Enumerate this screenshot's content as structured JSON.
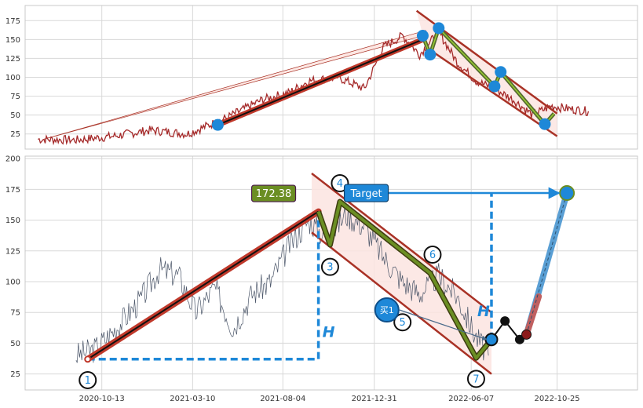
{
  "chart_data": [
    {
      "type": "line",
      "panel": "top",
      "ylim": [
        5,
        195
      ],
      "xlim": [
        "2020-06-10",
        "2023-03-05"
      ],
      "y_ticks": [
        25,
        50,
        75,
        100,
        125,
        150,
        175
      ],
      "grid": true,
      "price_series": {
        "color": "#a52a2a",
        "x": [
          "2020-07-01",
          "2020-09-01",
          "2020-11-01",
          "2021-01-01",
          "2021-03-01",
          "2021-05-01",
          "2021-07-01",
          "2021-08-15",
          "2021-09-15",
          "2021-11-01",
          "2021-12-15",
          "2022-01-15",
          "2022-02-15",
          "2022-03-15",
          "2022-04-15",
          "2022-05-15",
          "2022-06-15",
          "2022-07-15",
          "2022-08-15",
          "2022-09-15",
          "2022-10-15",
          "2022-11-15",
          "2022-12-15"
        ],
        "y": [
          18,
          17,
          22,
          30,
          25,
          45,
          70,
          80,
          95,
          100,
          85,
          140,
          155,
          130,
          160,
          120,
          95,
          85,
          70,
          50,
          62,
          58,
          55
        ]
      },
      "trend_line": {
        "x": [
          "2021-04-20",
          "2022-03-20"
        ],
        "y": [
          37,
          150
        ]
      },
      "wave_markers": {
        "x": [
          "2021-04-20",
          "2022-03-20",
          "2022-04-01",
          "2022-04-15",
          "2022-07-15",
          "2022-07-25",
          "2022-10-05"
        ],
        "y": [
          37,
          155,
          130,
          165,
          88,
          107,
          38
        ]
      },
      "zigzag": {
        "x": [
          "2022-03-20",
          "2022-04-01",
          "2022-04-15",
          "2022-07-15",
          "2022-07-25",
          "2022-10-05",
          "2022-10-20"
        ],
        "y": [
          155,
          130,
          165,
          88,
          107,
          38,
          52
        ]
      },
      "channel_upper": {
        "x": [
          "2022-03-10",
          "2022-10-25"
        ],
        "y": [
          188,
          52
        ]
      },
      "channel_lower": {
        "x": [
          "2022-03-25",
          "2022-10-25"
        ],
        "y": [
          140,
          22
        ]
      }
    },
    {
      "type": "line",
      "panel": "bottom",
      "ylim": [
        12,
        202
      ],
      "xlim": [
        "2020-06-10",
        "2023-03-05"
      ],
      "x_ticks": [
        "2020-10-13",
        "2021-03-10",
        "2021-08-04",
        "2021-12-31",
        "2022-06-07",
        "2022-10-25"
      ],
      "y_ticks": [
        25,
        50,
        75,
        100,
        125,
        150,
        175,
        200
      ],
      "grid": true,
      "price_series": {
        "color": "#4a5568",
        "x": [
          "2020-09-01",
          "2020-10-01",
          "2020-11-01",
          "2020-12-15",
          "2021-01-15",
          "2021-02-15",
          "2021-03-15",
          "2021-04-15",
          "2021-05-15",
          "2021-06-15",
          "2021-07-15",
          "2021-08-15",
          "2021-09-15",
          "2021-10-15",
          "2021-11-15",
          "2021-12-15",
          "2022-01-15",
          "2022-02-15",
          "2022-03-15",
          "2022-04-15",
          "2022-05-15",
          "2022-06-15",
          "2022-07-05"
        ],
        "y": [
          40,
          45,
          60,
          85,
          110,
          105,
          75,
          95,
          62,
          90,
          100,
          130,
          150,
          135,
          155,
          145,
          120,
          100,
          90,
          105,
          88,
          55,
          40
        ]
      },
      "impulse_line": {
        "x": [
          "2020-09-20",
          "2021-10-01"
        ],
        "y": [
          37,
          157
        ]
      },
      "channel_upper": {
        "x": [
          "2021-09-20",
          "2022-07-10"
        ],
        "y": [
          188,
          75
        ]
      },
      "channel_lower": {
        "x": [
          "2021-09-20",
          "2022-07-10"
        ],
        "y": [
          140,
          25
        ]
      },
      "zigzag": {
        "x": [
          "2021-10-01",
          "2021-10-20",
          "2021-11-05",
          "2022-04-01",
          "2022-06-15",
          "2022-07-10"
        ],
        "y": [
          157,
          130,
          165,
          107,
          38,
          53
        ]
      },
      "projection": {
        "x": [
          "2022-07-10",
          "2022-08-01",
          "2022-08-25",
          "2022-09-05",
          "2022-11-10"
        ],
        "y": [
          53,
          68,
          53,
          57,
          172
        ]
      },
      "h_measure_1": {
        "x": "2021-10-01",
        "y_from": 37,
        "y_to": 157,
        "baseline_from": "2020-09-20"
      },
      "h_measure_2": {
        "x": "2022-07-10",
        "y_from": 53,
        "y_to": 172
      },
      "target_arrow": {
        "x_from": "2022-01-01",
        "x_to": "2022-11-10",
        "y": 172
      },
      "buy_arrow": {
        "x_from": "2022-02-10",
        "x_to": "2022-07-10",
        "y_from": 77,
        "y_to": 53
      },
      "wave_labels": [
        {
          "text": "1",
          "x": "2020-09-20",
          "y": 20
        },
        {
          "text": "3",
          "x": "2021-10-20",
          "y": 112
        },
        {
          "text": "4",
          "x": "2021-11-05",
          "y": 180
        },
        {
          "text": "5",
          "x": "2022-02-15",
          "y": 67
        },
        {
          "text": "6",
          "x": "2022-04-05",
          "y": 122
        },
        {
          "text": "7",
          "x": "2022-06-15",
          "y": 21
        }
      ],
      "annotations": {
        "price_label": "172.38",
        "target_label": "Target",
        "buy_label": "买1",
        "h_label": "H"
      }
    }
  ],
  "colors": {
    "impulse": "#c0392b",
    "trend_core": "#111111",
    "channel": "#a93226",
    "channel_fill": "#fbe4e0",
    "zigzag_green": "#6b8e23",
    "marker_blue": "#1e88d8",
    "dashed_blue": "#1e88d8",
    "projection_blue": "#5a9fd4",
    "projection_red": "#c06060",
    "dot_black": "#111111"
  }
}
